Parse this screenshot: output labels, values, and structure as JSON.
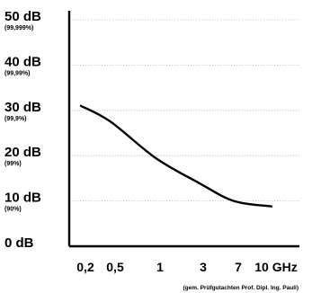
{
  "chart_data": {
    "type": "line",
    "title": "",
    "xlabel": "",
    "ylabel": "",
    "x_tick_labels": [
      "0,2",
      "0,5",
      "1",
      "3",
      "7",
      "10 GHz"
    ],
    "y_tick_labels": [
      {
        "main": "50 dB",
        "sub": "(99,999%)"
      },
      {
        "main": "40 dB",
        "sub": "(99,99%)"
      },
      {
        "main": "30 dB",
        "sub": "(99,9%)"
      },
      {
        "main": "20 dB",
        "sub": "(99%)"
      },
      {
        "main": "10 dB",
        "sub": "(90%)"
      },
      {
        "main": "0 dB",
        "sub": ""
      }
    ],
    "ylim": [
      0,
      50
    ],
    "grid": "horizontal dotted",
    "series": [
      {
        "x": [
          "0,2",
          "0,5",
          "1",
          "3",
          "7",
          "10 GHz"
        ],
        "values": [
          31,
          27.5,
          19.5,
          14,
          10,
          8.8
        ],
        "color": "#000000"
      }
    ],
    "annotation": "(gem. Prüfgutachten Prof. Dipl. Ing. Pauli)"
  }
}
